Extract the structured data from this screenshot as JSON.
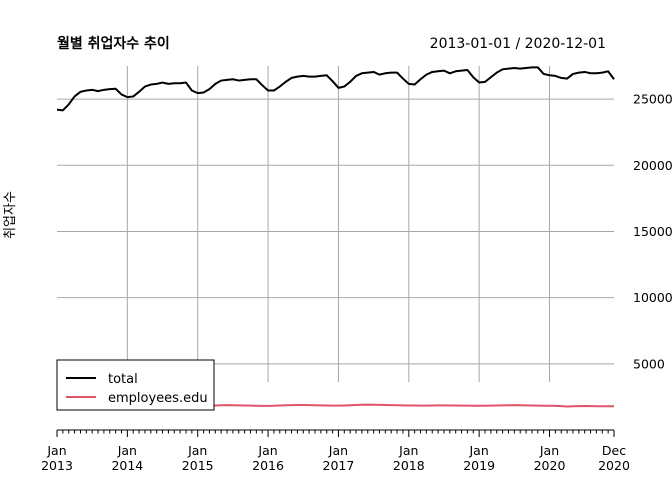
{
  "chart_data": {
    "type": "line",
    "title": "월별 취업자수 추이",
    "date_range": "2013-01-01 / 2020-12-01",
    "ylabel": "취업자수",
    "xlabel": "",
    "ylim": [
      0,
      27500
    ],
    "y_ticks": [
      {
        "value": 5000,
        "label": "5000"
      },
      {
        "value": 10000,
        "label": "10000"
      },
      {
        "value": 15000,
        "label": "15000"
      },
      {
        "value": 20000,
        "label": "20000"
      },
      {
        "value": 25000,
        "label": "25000"
      }
    ],
    "x_ticks": [
      {
        "date": "2013-01",
        "month": "Jan",
        "year": "2013"
      },
      {
        "date": "2014-01",
        "month": "Jan",
        "year": "2014"
      },
      {
        "date": "2015-01",
        "month": "Jan",
        "year": "2015"
      },
      {
        "date": "2016-01",
        "month": "Jan",
        "year": "2016"
      },
      {
        "date": "2017-01",
        "month": "Jan",
        "year": "2017"
      },
      {
        "date": "2018-01",
        "month": "Jan",
        "year": "2018"
      },
      {
        "date": "2019-01",
        "month": "Jan",
        "year": "2019"
      },
      {
        "date": "2020-01",
        "month": "Jan",
        "year": "2020"
      },
      {
        "date": "2020-12",
        "month": "Dec",
        "year": "2020"
      }
    ],
    "grid": true,
    "legend_position": "bottom-left",
    "start_month": "2013-01",
    "series": [
      {
        "name": "total",
        "color": "#000000",
        "values": [
          24200,
          24150,
          24600,
          25200,
          25550,
          25650,
          25700,
          25600,
          25700,
          25750,
          25780,
          25350,
          25150,
          25200,
          25550,
          25950,
          26100,
          26150,
          26250,
          26150,
          26200,
          26200,
          26250,
          25650,
          25450,
          25500,
          25750,
          26150,
          26400,
          26450,
          26500,
          26400,
          26450,
          26500,
          26500,
          26050,
          25650,
          25650,
          25950,
          26300,
          26600,
          26700,
          26750,
          26700,
          26700,
          26750,
          26800,
          26350,
          25850,
          25950,
          26300,
          26750,
          26950,
          27000,
          27050,
          26850,
          26950,
          27000,
          27000,
          26550,
          26150,
          26100,
          26500,
          26850,
          27050,
          27100,
          27150,
          26950,
          27100,
          27150,
          27200,
          26650,
          26250,
          26300,
          26650,
          27000,
          27250,
          27300,
          27350,
          27300,
          27350,
          27400,
          27400,
          26900,
          26800,
          26750,
          26600,
          26550,
          26900,
          27000,
          27050,
          26950,
          26950,
          27000,
          27100,
          26500
        ]
      },
      {
        "name": "employees.edu",
        "color": "#DF536B",
        "values": [
          1800,
          1800,
          1810,
          1820,
          1830,
          1840,
          1830,
          1820,
          1810,
          1800,
          1790,
          1780,
          1780,
          1790,
          1810,
          1830,
          1850,
          1860,
          1850,
          1840,
          1830,
          1820,
          1810,
          1800,
          1800,
          1810,
          1830,
          1850,
          1870,
          1880,
          1870,
          1860,
          1850,
          1840,
          1830,
          1820,
          1820,
          1830,
          1850,
          1870,
          1880,
          1890,
          1890,
          1880,
          1870,
          1860,
          1850,
          1840,
          1840,
          1850,
          1870,
          1890,
          1910,
          1920,
          1910,
          1900,
          1890,
          1880,
          1870,
          1860,
          1850,
          1850,
          1840,
          1840,
          1850,
          1860,
          1860,
          1850,
          1850,
          1840,
          1840,
          1830,
          1830,
          1830,
          1840,
          1850,
          1860,
          1870,
          1880,
          1870,
          1860,
          1850,
          1840,
          1830,
          1830,
          1820,
          1800,
          1780,
          1790,
          1800,
          1810,
          1800,
          1790,
          1790,
          1790,
          1790
        ]
      }
    ]
  }
}
